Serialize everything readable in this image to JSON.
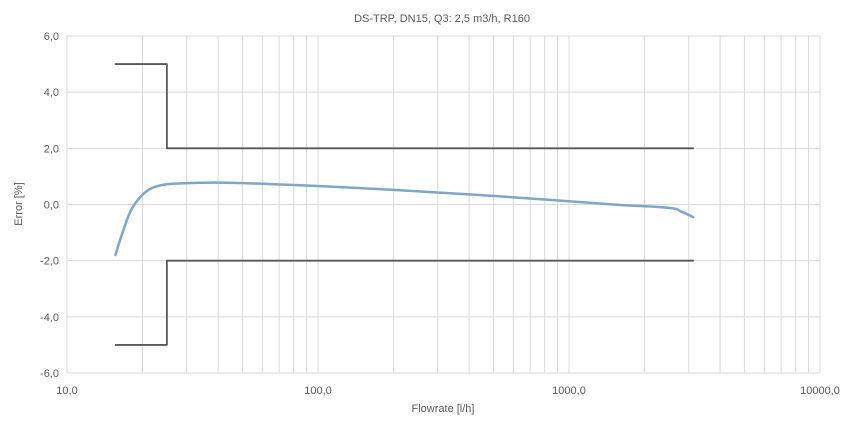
{
  "chart_data": {
    "type": "line",
    "title": "DS-TRP, DN15, Q3: 2,5 m3/h, R160",
    "xlabel": "Flowrate [l/h]",
    "ylabel": "Error [%]",
    "x_scale": "log",
    "xlim": [
      10,
      10000
    ],
    "ylim": [
      -6,
      6
    ],
    "x_ticks": [
      10,
      100,
      1000,
      10000
    ],
    "x_tick_labels": [
      "10,0",
      "100,0",
      "1000,0",
      "10000,0"
    ],
    "y_ticks": [
      6,
      4,
      2,
      0,
      -2,
      -4,
      -6
    ],
    "y_tick_labels": [
      "6,0",
      "4,0",
      "2,0",
      "0,0",
      "-2,0",
      "-4,0",
      "-6,0"
    ],
    "grid": true,
    "legend": "none",
    "colors": {
      "limits": "#595959",
      "error_curve": "#7ea6c8",
      "grid": "#d9d9d9"
    },
    "series": [
      {
        "role": "upper-limit",
        "x": [
          15.6,
          25,
          25,
          3125
        ],
        "y": [
          5,
          5,
          2,
          2
        ]
      },
      {
        "role": "lower-limit",
        "x": [
          15.6,
          25,
          25,
          3125
        ],
        "y": [
          -5,
          -5,
          -2,
          -2
        ]
      },
      {
        "role": "error-curve",
        "x": [
          15.6,
          16.5,
          18,
          20,
          22,
          25,
          30,
          40,
          60,
          100,
          200,
          400,
          800,
          1500,
          2500,
          2800,
          3125
        ],
        "y": [
          -1.8,
          -1.1,
          -0.2,
          0.35,
          0.6,
          0.72,
          0.76,
          0.78,
          0.74,
          0.66,
          0.52,
          0.36,
          0.18,
          0.0,
          -0.12,
          -0.25,
          -0.45
        ]
      }
    ]
  }
}
